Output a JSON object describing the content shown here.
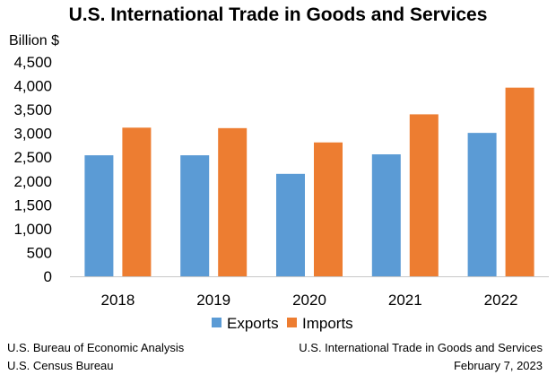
{
  "chart_data": {
    "type": "bar",
    "title": "U.S. International Trade in Goods and Services",
    "ylabel": "Billion $",
    "xlabel": "",
    "categories": [
      "2018",
      "2019",
      "2020",
      "2021",
      "2022"
    ],
    "series": [
      {
        "name": "Exports",
        "color": "#5B9BD5",
        "values": [
          2540,
          2540,
          2150,
          2560,
          3010
        ]
      },
      {
        "name": "Imports",
        "color": "#ED7D31",
        "values": [
          3120,
          3110,
          2810,
          3400,
          3960
        ]
      }
    ],
    "ylim": [
      0,
      4500
    ],
    "yticks": [
      0,
      500,
      1000,
      1500,
      2000,
      2500,
      3000,
      3500,
      4000,
      4500
    ],
    "ytick_labels": [
      "0",
      "500",
      "1,000",
      "1,500",
      "2,000",
      "2,500",
      "3,000",
      "3,500",
      "4,000",
      "4,500"
    ],
    "grid": false,
    "legend": "bottom-center"
  },
  "footer": {
    "left_line1": "U.S. Bureau of Economic Analysis",
    "left_line2": "U.S. Census Bureau",
    "right_line1": "U.S. International Trade in Goods and Services",
    "right_line2": "February 7, 2023"
  }
}
